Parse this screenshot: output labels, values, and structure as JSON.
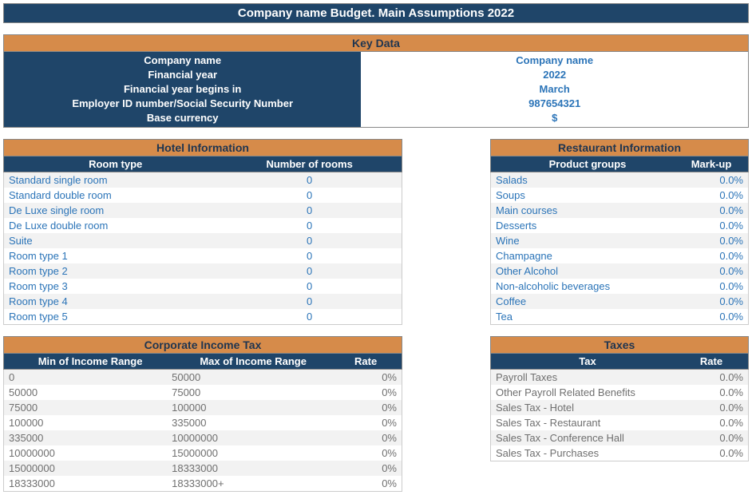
{
  "title": "Company name Budget. Main Assumptions 2022",
  "keyData": {
    "header": "Key Data",
    "rows": [
      {
        "label": "Company name",
        "value": "Company name"
      },
      {
        "label": "Financial year",
        "value": "2022"
      },
      {
        "label": "Financial year begins in",
        "value": "March"
      },
      {
        "label": "Employer ID number/Social Security Number",
        "value": "987654321"
      },
      {
        "label": "Base currency",
        "value": "$"
      }
    ]
  },
  "hotel": {
    "header": "Hotel Information",
    "cols": [
      "Room type",
      "Number of rooms"
    ],
    "rows": [
      [
        "Standard single room",
        "0"
      ],
      [
        "Standard double room",
        "0"
      ],
      [
        "De Luxe single room",
        "0"
      ],
      [
        "De Luxe double room",
        "0"
      ],
      [
        "Suite",
        "0"
      ],
      [
        "Room type 1",
        "0"
      ],
      [
        "Room type 2",
        "0"
      ],
      [
        "Room type 3",
        "0"
      ],
      [
        "Room type 4",
        "0"
      ],
      [
        "Room type 5",
        "0"
      ]
    ]
  },
  "restaurant": {
    "header": "Restaurant Information",
    "cols": [
      "Product groups",
      "Mark-up"
    ],
    "rows": [
      [
        "Salads",
        "0.0%"
      ],
      [
        "Soups",
        "0.0%"
      ],
      [
        "Main courses",
        "0.0%"
      ],
      [
        "Desserts",
        "0.0%"
      ],
      [
        "Wine",
        "0.0%"
      ],
      [
        "Champagne",
        "0.0%"
      ],
      [
        "Other Alcohol",
        "0.0%"
      ],
      [
        "Non-alcoholic beverages",
        "0.0%"
      ],
      [
        "Coffee",
        "0.0%"
      ],
      [
        "Tea",
        "0.0%"
      ]
    ]
  },
  "cit": {
    "header": "Corporate Income Tax",
    "cols": [
      "Min of Income Range",
      "Max of Income Range",
      "Rate"
    ],
    "rows": [
      [
        "0",
        "50000",
        "0%"
      ],
      [
        "50000",
        "75000",
        "0%"
      ],
      [
        "75000",
        "100000",
        "0%"
      ],
      [
        "100000",
        "335000",
        "0%"
      ],
      [
        "335000",
        "10000000",
        "0%"
      ],
      [
        "10000000",
        "15000000",
        "0%"
      ],
      [
        "15000000",
        "18333000",
        "0%"
      ],
      [
        "18333000",
        "18333000+",
        "0%"
      ]
    ]
  },
  "taxes": {
    "header": "Taxes",
    "cols": [
      "Tax",
      "Rate"
    ],
    "rows": [
      [
        "Payroll Taxes",
        "0.0%"
      ],
      [
        "Other Payroll Related Benefits",
        "0.0%"
      ],
      [
        "Sales Tax - Hotel",
        "0.0%"
      ],
      [
        "Sales Tax - Restaurant",
        "0.0%"
      ],
      [
        "Sales Tax - Conference Hall",
        "0.0%"
      ],
      [
        "Sales Tax - Purchases",
        "0.0%"
      ]
    ]
  }
}
